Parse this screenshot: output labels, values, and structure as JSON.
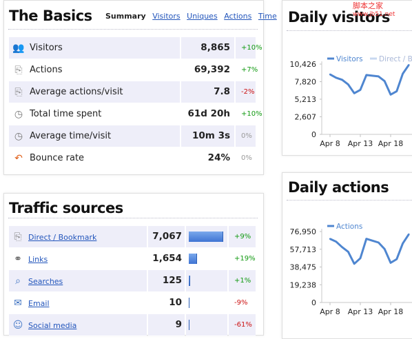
{
  "basics": {
    "title": "The Basics",
    "tabs": [
      {
        "label": "Summary",
        "active": true
      },
      {
        "label": "Visitors",
        "active": false
      },
      {
        "label": "Uniques",
        "active": false
      },
      {
        "label": "Actions",
        "active": false
      },
      {
        "label": "Time",
        "active": false
      }
    ],
    "rows": [
      {
        "icon": "visitors-icon",
        "label": "Visitors",
        "value": "8,865",
        "change": "+10%",
        "trend": "pos"
      },
      {
        "icon": "mouse-icon",
        "label": "Actions",
        "value": "69,392",
        "change": "+7%",
        "trend": "pos"
      },
      {
        "icon": "mouse-icon",
        "label": "Average actions/visit",
        "value": "7.8",
        "change": "-2%",
        "trend": "neg"
      },
      {
        "icon": "clock-icon",
        "label": "Total time spent",
        "value": "61d 20h",
        "change": "+10%",
        "trend": "pos"
      },
      {
        "icon": "clock-icon",
        "label": "Average time/visit",
        "value": "10m 3s",
        "change": "0%",
        "trend": "neu"
      },
      {
        "icon": "bounce-icon",
        "label": "Bounce rate",
        "value": "24%",
        "change": "0%",
        "trend": "neu"
      }
    ]
  },
  "traffic": {
    "title": "Traffic sources",
    "rows": [
      {
        "icon": "mouse-icon",
        "label": "Direct / Bookmark",
        "value": "7,067",
        "share": 1.0,
        "change": "+9%",
        "trend": "pos"
      },
      {
        "icon": "chain-link-icon",
        "label": "Links",
        "value": "1,654",
        "share": 0.23,
        "change": "+19%",
        "trend": "pos"
      },
      {
        "icon": "magnifier-icon",
        "label": "Searches",
        "value": "125",
        "share": 0.018,
        "change": "+1%",
        "trend": "pos"
      },
      {
        "icon": "envelope-icon",
        "label": "Email",
        "value": "10",
        "share": 0.0015,
        "change": "-9%",
        "trend": "neg"
      },
      {
        "icon": "social-media-icon",
        "label": "Social media",
        "value": "9",
        "share": 0.0013,
        "change": "-61%",
        "trend": "neg"
      }
    ]
  },
  "chart_data": [
    {
      "type": "line",
      "title": "Daily visitors",
      "legend": [
        "Visitors",
        "Direct / Bookmark"
      ],
      "legend_colors": [
        "#4f86d0",
        "#c8d8f0"
      ],
      "yticks": [
        "10,426",
        "7,820",
        "5,213",
        "2,607",
        "0"
      ],
      "ylim": [
        0,
        10426
      ],
      "xticks": [
        "Apr 8",
        "Apr 13",
        "Apr 18"
      ],
      "series": [
        {
          "name": "Visitors",
          "color": "#4f86d0",
          "x": [
            8,
            9,
            10,
            11,
            12,
            13,
            14,
            15,
            16,
            17,
            18,
            19,
            20,
            21
          ],
          "values": [
            8900,
            8400,
            8100,
            7400,
            6100,
            6600,
            8800,
            8700,
            8600,
            7900,
            5900,
            6400,
            9000,
            10300
          ]
        }
      ]
    },
    {
      "type": "line",
      "title": "Daily actions",
      "legend": [
        "Actions"
      ],
      "legend_colors": [
        "#4f86d0"
      ],
      "yticks": [
        "76,950",
        "57,713",
        "38,475",
        "19,238",
        "0"
      ],
      "ylim": [
        0,
        76950
      ],
      "xticks": [
        "Apr 8",
        "Apr 13",
        "Apr 18"
      ],
      "series": [
        {
          "name": "Actions",
          "color": "#4f86d0",
          "x": [
            8,
            9,
            10,
            11,
            12,
            13,
            14,
            15,
            16,
            17,
            18,
            19,
            20,
            21
          ],
          "values": [
            69000,
            66000,
            60000,
            55000,
            42000,
            48000,
            69000,
            67000,
            65000,
            58000,
            43000,
            47000,
            64000,
            74000
          ]
        }
      ]
    }
  ],
  "watermark": {
    "line1": "脚本之家",
    "line2": "www.jb51.net"
  }
}
